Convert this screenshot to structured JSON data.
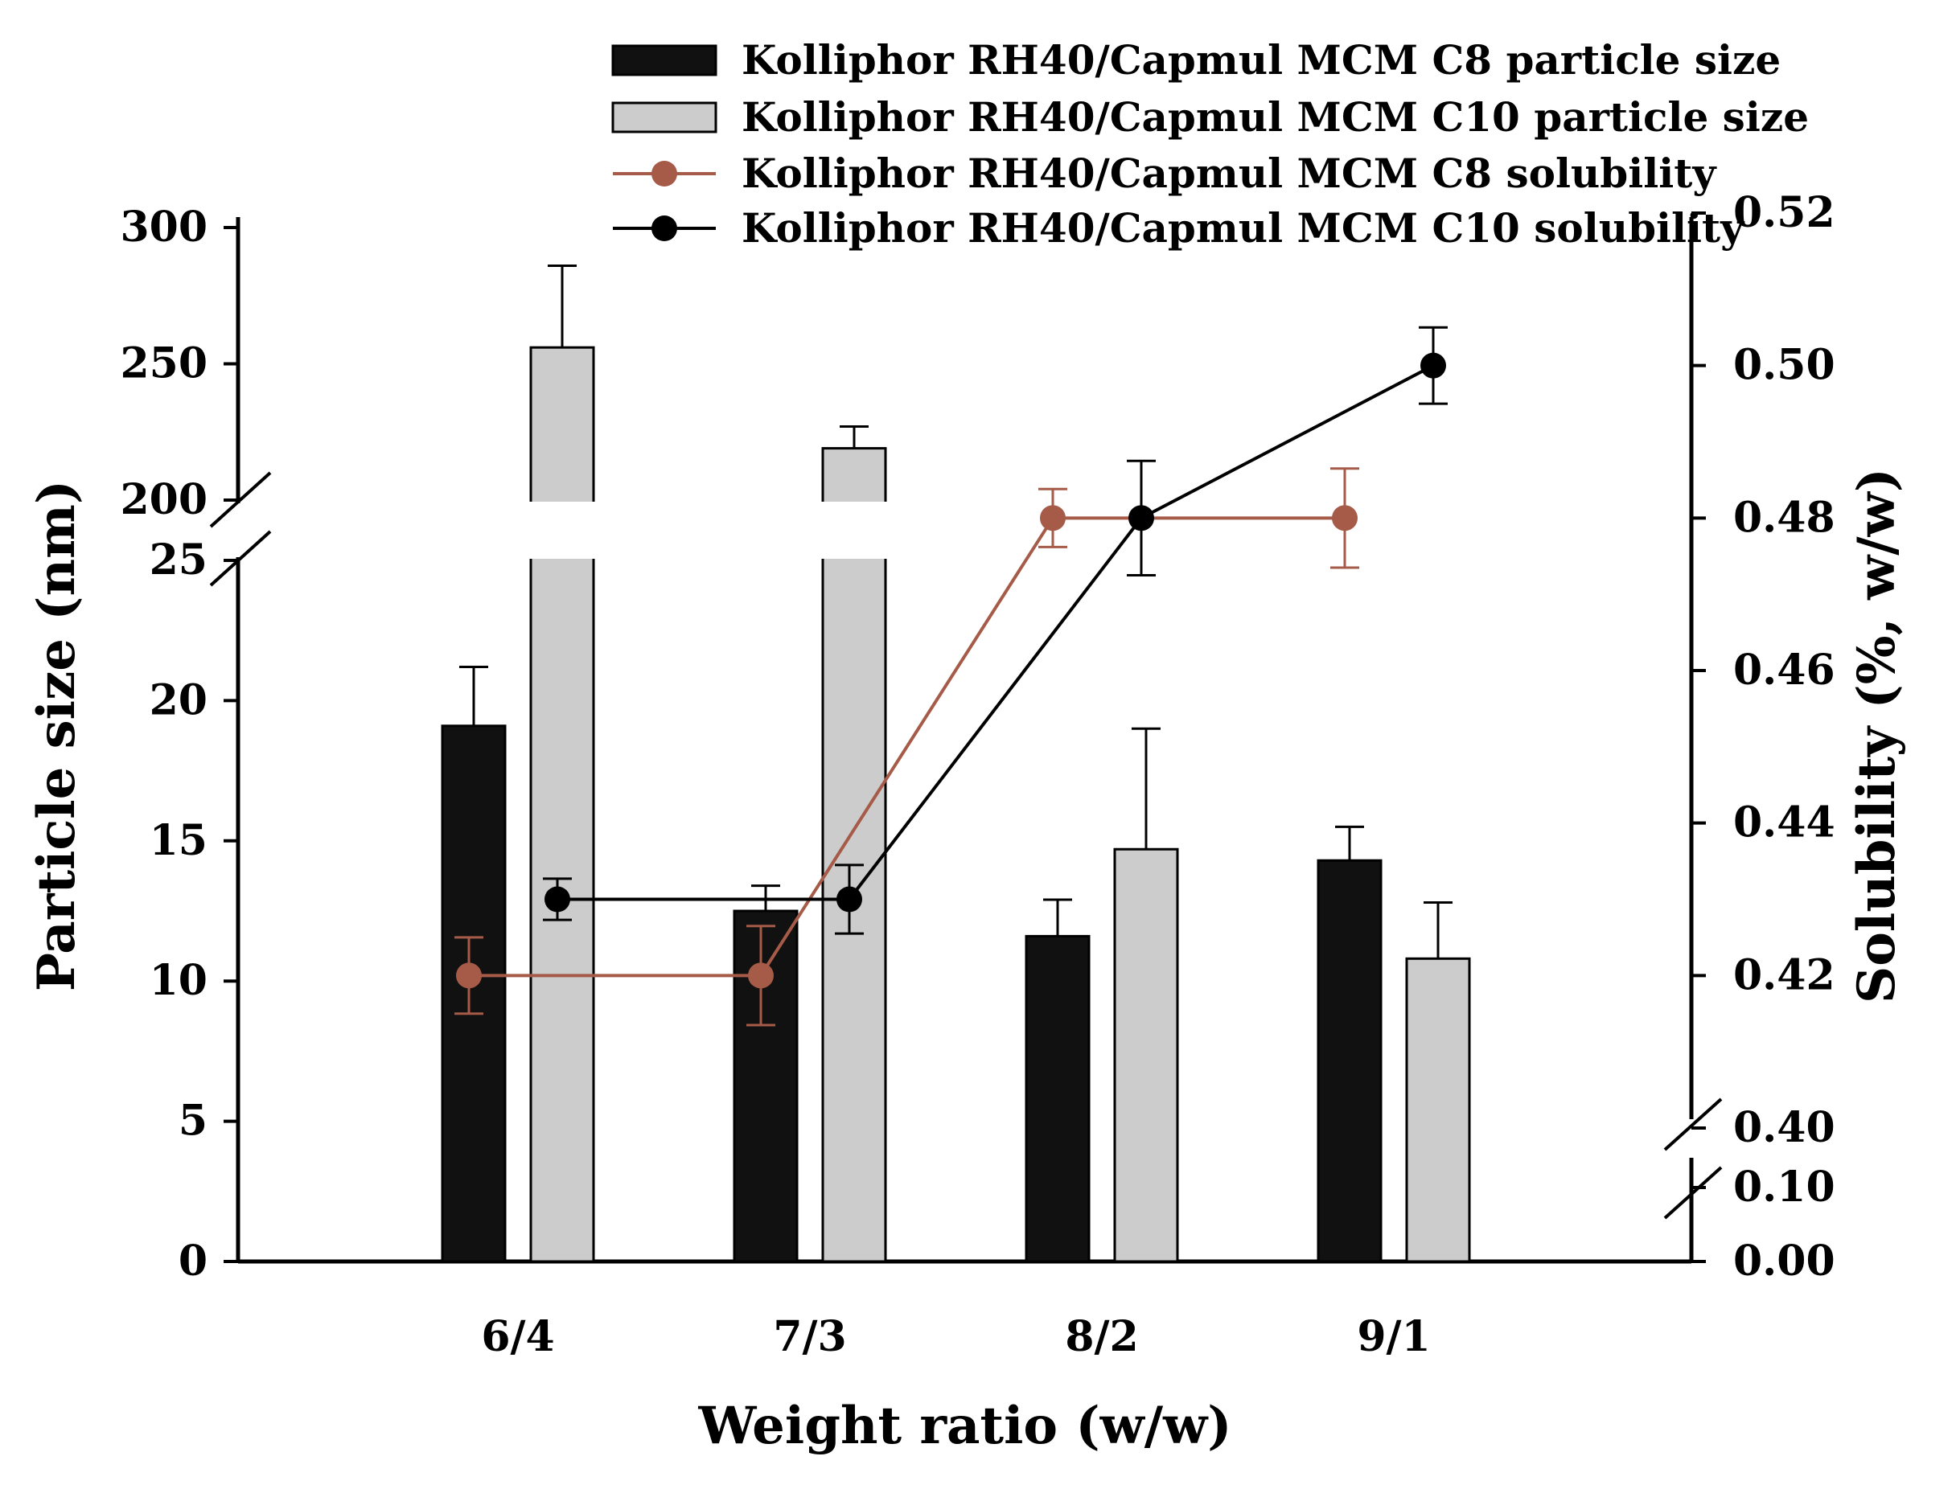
{
  "chart_data": {
    "type": "bar+line (dual axis, broken axes)",
    "categories": [
      "6/4",
      "7/3",
      "8/2",
      "9/1"
    ],
    "xlabel": "Weight ratio (w/w)",
    "ylabel_left": "Particle size (nm)",
    "ylabel_right": "Solubility (%, w/w)",
    "left_axis": {
      "lower_segment": [
        0,
        25
      ],
      "upper_segment": [
        200,
        300
      ],
      "ticks_lower": [
        "0",
        "5",
        "10",
        "15",
        "20",
        "25"
      ],
      "ticks_upper": [
        "200",
        "250",
        "300"
      ]
    },
    "right_axis": {
      "lower_segment": [
        0.0,
        0.1
      ],
      "upper_segment": [
        0.4,
        0.52
      ],
      "ticks_lower": [
        "0.00",
        "0.10"
      ],
      "ticks_upper": [
        "0.40",
        "0.42",
        "0.44",
        "0.46",
        "0.48",
        "0.50",
        "0.52"
      ]
    },
    "bar_series": [
      {
        "name": "Kolliphor RH40/Capmul MCM C8 particle size",
        "color": "#111111",
        "values": [
          19.1,
          12.5,
          11.6,
          14.3
        ],
        "errors": [
          2.1,
          0.9,
          1.3,
          1.2
        ]
      },
      {
        "name": "Kolliphor RH40/Capmul MCM C10 particle size",
        "color": "#cccccc",
        "values": [
          256,
          219,
          14.7,
          10.8
        ],
        "errors": [
          30,
          8,
          4.3,
          2.0
        ]
      }
    ],
    "line_series": [
      {
        "name": "Kolliphor RH40/Capmul MCM C8 solubility",
        "color": "#a65a48",
        "values": [
          0.42,
          0.42,
          0.48,
          0.48
        ],
        "errors": [
          0.005,
          0.0065,
          0.0038,
          0.0065
        ]
      },
      {
        "name": "Kolliphor RH40/Capmul MCM C10 solubility",
        "color": "#000000",
        "values": [
          0.43,
          0.43,
          0.48,
          0.5
        ],
        "errors": [
          0.0027,
          0.0045,
          0.0075,
          0.005
        ]
      }
    ],
    "legend_position": "top"
  }
}
